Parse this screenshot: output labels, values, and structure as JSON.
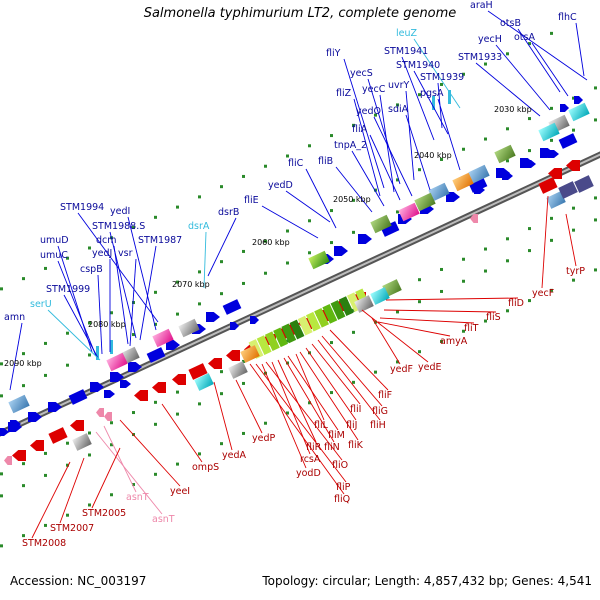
{
  "title": "Salmonella typhimurium LT2, complete genome",
  "footer": {
    "accession": "Accession: NC_003197",
    "topology": "Topology: circular; Length: 4,857,432 bp; Genes: 4,541"
  },
  "colors": {
    "plus_strand": "#0000dd",
    "minus_strand": "#dd0000",
    "trna": "#33bbdd",
    "trna_minus": "#ee88aa",
    "backbone": "#888888"
  },
  "kbp_labels": [
    "2030 kbp",
    "2040 kbp",
    "2050 kbp",
    "2060 kbp",
    "2070 kbp",
    "2080 kbp",
    "2090 kbp"
  ],
  "top_genes": [
    {
      "name": "araH",
      "type": "cds"
    },
    {
      "name": "otsB",
      "type": "cds"
    },
    {
      "name": "flhC",
      "type": "cds"
    },
    {
      "name": "yecH",
      "type": "cds"
    },
    {
      "name": "otsA",
      "type": "cds"
    },
    {
      "name": "leuZ",
      "type": "trna"
    },
    {
      "name": "STM1933",
      "type": "cds"
    },
    {
      "name": "STM1941",
      "type": "cds"
    },
    {
      "name": "STM1940",
      "type": "cds"
    },
    {
      "name": "fliY",
      "type": "cds"
    },
    {
      "name": "STM1939",
      "type": "cds"
    },
    {
      "name": "yecS",
      "type": "cds"
    },
    {
      "name": "uvrY",
      "type": "cds"
    },
    {
      "name": "yecC",
      "type": "cds"
    },
    {
      "name": "fliZ",
      "type": "cds"
    },
    {
      "name": "pgsA",
      "type": "cds"
    },
    {
      "name": "yedO",
      "type": "cds"
    },
    {
      "name": "sdiA",
      "type": "cds"
    },
    {
      "name": "fliA",
      "type": "cds"
    },
    {
      "name": "tnpA_2",
      "type": "cds"
    },
    {
      "name": "fliB",
      "type": "cds"
    },
    {
      "name": "fliC",
      "type": "cds"
    },
    {
      "name": "yedD",
      "type": "cds"
    },
    {
      "name": "fliE",
      "type": "cds"
    },
    {
      "name": "STM1994",
      "type": "cds"
    },
    {
      "name": "yedI",
      "type": "cds"
    },
    {
      "name": "STM1988.S",
      "type": "cds"
    },
    {
      "name": "dsrA",
      "type": "trna"
    },
    {
      "name": "dsrB",
      "type": "cds"
    },
    {
      "name": "dcm",
      "type": "cds"
    },
    {
      "name": "umuD",
      "type": "cds"
    },
    {
      "name": "STM1987",
      "type": "cds"
    },
    {
      "name": "yedJ",
      "type": "cds"
    },
    {
      "name": "vsr",
      "type": "cds"
    },
    {
      "name": "umuC",
      "type": "cds"
    },
    {
      "name": "cspB",
      "type": "cds"
    },
    {
      "name": "STM1999",
      "type": "cds"
    },
    {
      "name": "serU",
      "type": "trna"
    },
    {
      "name": "amn",
      "type": "cds"
    }
  ],
  "bottom_genes": [
    {
      "name": "tyrP",
      "type": "cds"
    },
    {
      "name": "yecF",
      "type": "cds"
    },
    {
      "name": "fliD",
      "type": "cds"
    },
    {
      "name": "fliS",
      "type": "cds"
    },
    {
      "name": "fliT",
      "type": "cds"
    },
    {
      "name": "amyA",
      "type": "cds"
    },
    {
      "name": "yedE",
      "type": "cds"
    },
    {
      "name": "yedF",
      "type": "cds"
    },
    {
      "name": "fliF",
      "type": "cds"
    },
    {
      "name": "fliG",
      "type": "cds"
    },
    {
      "name": "fliH",
      "type": "cds"
    },
    {
      "name": "fliI",
      "type": "cds"
    },
    {
      "name": "fliJ",
      "type": "cds"
    },
    {
      "name": "fliK",
      "type": "cds"
    },
    {
      "name": "fliL",
      "type": "cds"
    },
    {
      "name": "fliM",
      "type": "cds"
    },
    {
      "name": "fliN",
      "type": "cds"
    },
    {
      "name": "fliR",
      "type": "cds"
    },
    {
      "name": "rcsA",
      "type": "cds"
    },
    {
      "name": "fliO",
      "type": "cds"
    },
    {
      "name": "yodD",
      "type": "cds"
    },
    {
      "name": "fliP",
      "type": "cds"
    },
    {
      "name": "fliQ",
      "type": "cds"
    },
    {
      "name": "yedP",
      "type": "cds"
    },
    {
      "name": "yedA",
      "type": "cds"
    },
    {
      "name": "ompS",
      "type": "cds"
    },
    {
      "name": "yeeI",
      "type": "cds"
    },
    {
      "name": "asnT",
      "type": "trna_minus"
    },
    {
      "name": "asnT",
      "type": "trna_minus"
    },
    {
      "name": "STM2005",
      "type": "cds"
    },
    {
      "name": "STM2007",
      "type": "cds"
    },
    {
      "name": "STM2008",
      "type": "cds"
    }
  ]
}
